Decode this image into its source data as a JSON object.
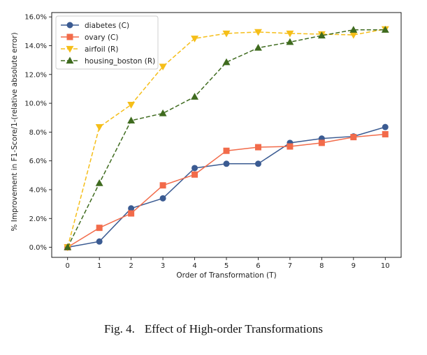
{
  "caption": {
    "fig": "Fig. 4.",
    "text": "Effect of High-order Transformations"
  },
  "chart_data": {
    "type": "line",
    "title": "",
    "xlabel": "Order of Transformation (T)",
    "ylabel": "% Improvement in F1-Score/1-(relative absolute error)",
    "x": [
      0,
      1,
      2,
      3,
      4,
      5,
      6,
      7,
      8,
      9,
      10
    ],
    "xlim": [
      -0.5,
      10.5
    ],
    "ylim": [
      -0.7,
      16.3
    ],
    "y_ticks": [
      0,
      2,
      4,
      6,
      8,
      10,
      12,
      14,
      16
    ],
    "y_tick_labels": [
      "0.0%",
      "2.0%",
      "4.0%",
      "6.0%",
      "8.0%",
      "10.0%",
      "12.0%",
      "14.0%",
      "16.0%"
    ],
    "x_tick_labels": [
      "0",
      "1",
      "2",
      "3",
      "4",
      "5",
      "6",
      "7",
      "8",
      "9",
      "10"
    ],
    "grid": false,
    "legend_position": "top-left",
    "series": [
      {
        "name": "diabetes (C)",
        "color": "#3b5b92",
        "marker": "circle",
        "dash": "solid",
        "values": [
          0.0,
          0.4,
          2.7,
          3.4,
          5.5,
          5.8,
          5.8,
          7.25,
          7.55,
          7.7,
          8.35
        ]
      },
      {
        "name": "ovary (C)",
        "color": "#f26b4a",
        "marker": "square",
        "dash": "solid",
        "values": [
          0.0,
          1.35,
          2.35,
          4.3,
          5.05,
          6.7,
          6.95,
          7.0,
          7.25,
          7.65,
          7.85
        ]
      },
      {
        "name": "airfoil (R)",
        "color": "#f5be19",
        "marker": "triangle-down",
        "dash": "dashed",
        "values": [
          0.0,
          8.35,
          9.9,
          12.55,
          14.5,
          14.85,
          14.95,
          14.85,
          14.8,
          14.75,
          15.15
        ]
      },
      {
        "name": "housing_boston (R)",
        "color": "#3f6b1f",
        "marker": "triangle-up",
        "dash": "dashed",
        "values": [
          0.0,
          4.45,
          8.8,
          9.3,
          10.45,
          12.85,
          13.85,
          14.25,
          14.7,
          15.1,
          15.1
        ]
      }
    ]
  }
}
